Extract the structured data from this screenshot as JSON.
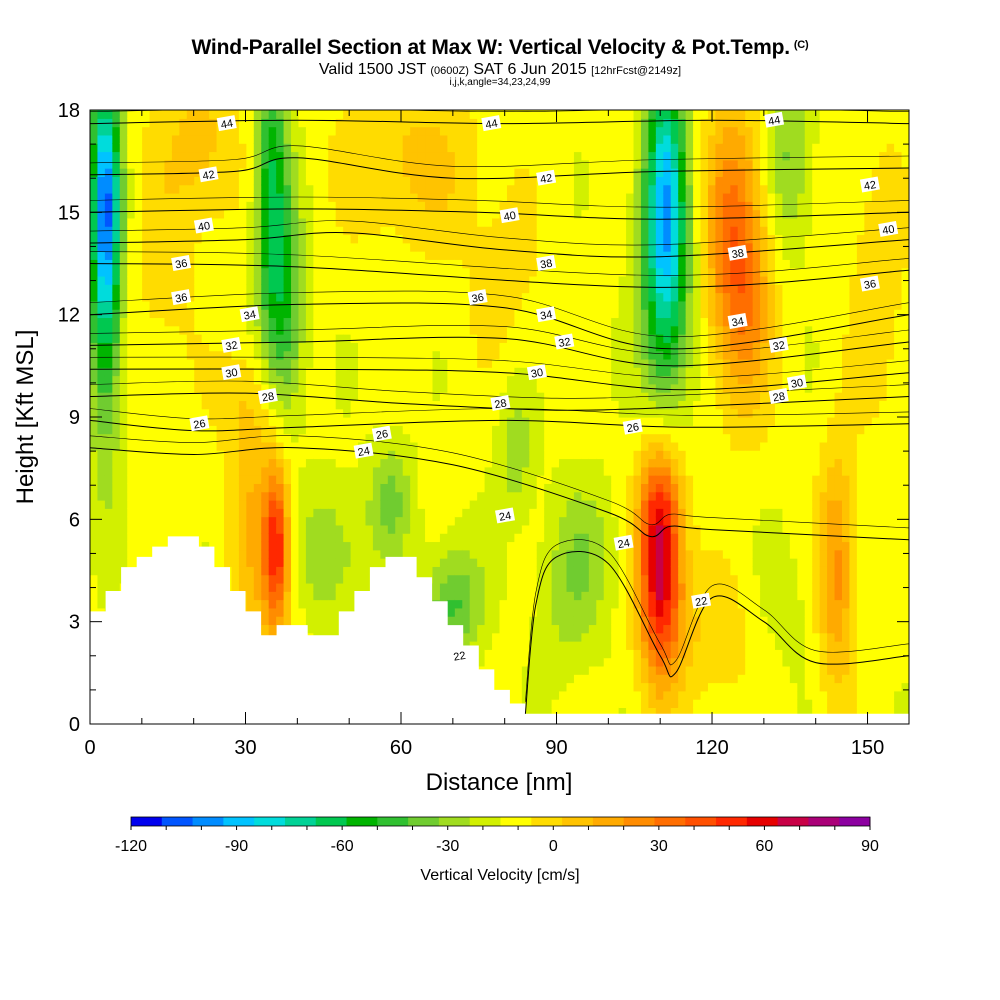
{
  "chart_data": {
    "type": "heatmap",
    "title": "Wind-Parallel Section at Max W: Vertical Velocity & Pot.Temp.",
    "title_mark": "(C)",
    "subtitle_parts": [
      "Valid 1500 JST ",
      "(0600Z)",
      " SAT 6 Jun 2015 ",
      "[12hrFcst@2149z]"
    ],
    "subtitle2": "i,j,k,angle=34,23,24,99",
    "xlabel": "Distance [nm]",
    "ylabel": "Height [Kft MSL]",
    "xlim": [
      0,
      158
    ],
    "ylim": [
      0,
      18
    ],
    "xticks": [
      "0",
      "30",
      "60",
      "90",
      "120",
      "150"
    ],
    "yticks": [
      "0",
      "3",
      "6",
      "9",
      "12",
      "15",
      "18"
    ],
    "colorbar": {
      "title": "Vertical Velocity [cm/s]",
      "ticks": [
        "-120",
        "-90",
        "-60",
        "-30",
        "0",
        "30",
        "60",
        "90"
      ],
      "range": [
        -120,
        90
      ],
      "step": 10,
      "colors": [
        "#0000ee",
        "#0055ff",
        "#008cff",
        "#00c3ff",
        "#00dcdc",
        "#00d296",
        "#00c850",
        "#00b400",
        "#30c030",
        "#70cc30",
        "#a0dc20",
        "#d2f000",
        "#ffff00",
        "#ffdc00",
        "#ffc300",
        "#ffaa00",
        "#ff8c00",
        "#ff6e00",
        "#ff5000",
        "#ff2800",
        "#e60000",
        "#c80046",
        "#aa0078",
        "#8c00a0"
      ]
    },
    "terrain": [
      [
        0,
        3.3
      ],
      [
        3,
        3.3
      ],
      [
        3,
        3.9
      ],
      [
        6,
        3.9
      ],
      [
        6,
        4.6
      ],
      [
        9,
        4.6
      ],
      [
        9,
        4.9
      ],
      [
        12,
        4.9
      ],
      [
        12,
        5.2
      ],
      [
        15,
        5.2
      ],
      [
        15,
        5.5
      ],
      [
        21,
        5.5
      ],
      [
        21,
        5.2
      ],
      [
        24,
        5.2
      ],
      [
        24,
        4.6
      ],
      [
        27,
        4.6
      ],
      [
        27,
        3.9
      ],
      [
        30,
        3.9
      ],
      [
        30,
        3.3
      ],
      [
        33,
        3.3
      ],
      [
        33,
        2.6
      ],
      [
        36,
        2.6
      ],
      [
        36,
        2.9
      ],
      [
        42,
        2.9
      ],
      [
        42,
        2.6
      ],
      [
        48,
        2.6
      ],
      [
        48,
        3.3
      ],
      [
        51,
        3.3
      ],
      [
        51,
        3.9
      ],
      [
        54,
        3.9
      ],
      [
        54,
        4.6
      ],
      [
        57,
        4.6
      ],
      [
        57,
        4.9
      ],
      [
        63,
        4.9
      ],
      [
        63,
        4.3
      ],
      [
        66,
        4.3
      ],
      [
        66,
        3.6
      ],
      [
        69,
        3.6
      ],
      [
        69,
        2.9
      ],
      [
        72,
        2.9
      ],
      [
        72,
        2.3
      ],
      [
        75,
        2.3
      ],
      [
        75,
        1.6
      ],
      [
        78,
        1.6
      ],
      [
        78,
        1.0
      ],
      [
        81,
        1.0
      ],
      [
        81,
        0.6
      ],
      [
        84,
        0.6
      ],
      [
        84,
        0.3
      ],
      [
        158,
        0.3
      ],
      [
        158,
        0
      ],
      [
        0,
        0
      ]
    ],
    "vertical_velocity_features": [
      {
        "x": 3,
        "y": 15.5,
        "sx": 2.0,
        "sy": 2.6,
        "value": -80
      },
      {
        "x": 3,
        "y": 12.0,
        "sx": 2.2,
        "sy": 3.5,
        "value": -40
      },
      {
        "x": 14,
        "y": 13.0,
        "sx": 5,
        "sy": 4,
        "value": 10
      },
      {
        "x": 35,
        "y": 15.5,
        "sx": 2.2,
        "sy": 3.0,
        "value": -55
      },
      {
        "x": 38,
        "y": 12.0,
        "sx": 2.5,
        "sy": 2.5,
        "value": -35
      },
      {
        "x": 36,
        "y": 5.2,
        "sx": 1.6,
        "sy": 1.6,
        "value": 55
      },
      {
        "x": 35,
        "y": 5.0,
        "sx": 3.5,
        "sy": 2.6,
        "value": 25
      },
      {
        "x": 22,
        "y": 17.0,
        "sx": 5,
        "sy": 1.8,
        "value": 20
      },
      {
        "x": 30,
        "y": 6.0,
        "sx": 3,
        "sy": 2.0,
        "value": 15
      },
      {
        "x": 46,
        "y": 5.0,
        "sx": 5,
        "sy": 1.4,
        "value": -22
      },
      {
        "x": 58,
        "y": 6.6,
        "sx": 3,
        "sy": 1.2,
        "value": -25
      },
      {
        "x": 70,
        "y": 3.5,
        "sx": 4,
        "sy": 1.2,
        "value": -35
      },
      {
        "x": 62,
        "y": 16.5,
        "sx": 10,
        "sy": 1.8,
        "value": 20
      },
      {
        "x": 82,
        "y": 8.0,
        "sx": 2.5,
        "sy": 1.4,
        "value": -20
      },
      {
        "x": 95,
        "y": 5.0,
        "sx": 5,
        "sy": 1.5,
        "value": -20
      },
      {
        "x": 92,
        "y": 2.8,
        "sx": 4,
        "sy": 1.3,
        "value": -10
      },
      {
        "x": 110,
        "y": 4.5,
        "sx": 3.0,
        "sy": 2.2,
        "value": 90
      },
      {
        "x": 110,
        "y": 6.5,
        "sx": 3.0,
        "sy": 1.2,
        "value": 20
      },
      {
        "x": 111,
        "y": 16.0,
        "sx": 2.8,
        "sy": 2.8,
        "value": -70
      },
      {
        "x": 111,
        "y": 12.5,
        "sx": 3.5,
        "sy": 2.6,
        "value": -45
      },
      {
        "x": 124,
        "y": 15.0,
        "sx": 4,
        "sy": 2.5,
        "value": 40
      },
      {
        "x": 126,
        "y": 12.0,
        "sx": 4,
        "sy": 2.2,
        "value": 35
      },
      {
        "x": 135,
        "y": 16.5,
        "sx": 3,
        "sy": 1.8,
        "value": -25
      },
      {
        "x": 144,
        "y": 4.5,
        "sx": 2.5,
        "sy": 2.5,
        "value": 40
      },
      {
        "x": 152,
        "y": 13.0,
        "sx": 4,
        "sy": 3.0,
        "value": 15
      },
      {
        "x": 80,
        "y": 13.0,
        "sx": 6,
        "sy": 2.0,
        "value": 10
      },
      {
        "x": 134,
        "y": 3.5,
        "sx": 4,
        "sy": 1.5,
        "value": -8
      },
      {
        "x": 120,
        "y": 2.5,
        "sx": 6,
        "sy": 1.5,
        "value": 15
      },
      {
        "x": 30,
        "y": 9.5,
        "sx": 4,
        "sy": 1.2,
        "value": 15
      }
    ],
    "potential_temperature_contours": [
      {
        "label": "44",
        "points": [
          [
            0,
            17.6
          ],
          [
            40,
            17.7
          ],
          [
            80,
            17.6
          ],
          [
            120,
            17.7
          ],
          [
            158,
            17.6
          ]
        ],
        "labels_at": [
          [
            30,
            17.6
          ],
          [
            88,
            17.6
          ],
          [
            150,
            17.7
          ]
        ]
      },
      {
        "label": "42",
        "points": [
          [
            0,
            16.1
          ],
          [
            28,
            16.2
          ],
          [
            40,
            16.6
          ],
          [
            70,
            16.0
          ],
          [
            110,
            16.2
          ],
          [
            158,
            16.3
          ]
        ],
        "labels_at": [
          [
            26,
            16.1
          ],
          [
            100,
            16.0
          ],
          [
            171,
            15.8
          ]
        ]
      },
      {
        "label": "40",
        "points": [
          [
            0,
            15.0
          ],
          [
            40,
            15.1
          ],
          [
            75,
            15.0
          ],
          [
            110,
            14.8
          ],
          [
            158,
            15.0
          ]
        ],
        "labels_at": [
          [
            25,
            14.6
          ],
          [
            92,
            14.9
          ],
          [
            175,
            14.5
          ]
        ]
      },
      {
        "label": "38",
        "points": [
          [
            0,
            14.1
          ],
          [
            30,
            14.2
          ],
          [
            50,
            14.4
          ],
          [
            80,
            13.9
          ],
          [
            110,
            13.7
          ],
          [
            158,
            14.2
          ]
        ],
        "labels_at": [
          [
            100,
            13.5
          ],
          [
            142,
            13.8
          ]
        ]
      },
      {
        "label": "36",
        "points": [
          [
            0,
            13.5
          ],
          [
            40,
            13.4
          ],
          [
            110,
            12.8
          ],
          [
            158,
            13.3
          ]
        ],
        "labels_at": [
          [
            20,
            13.5
          ],
          [
            20,
            12.5
          ],
          [
            85,
            12.5
          ],
          [
            171,
            12.9
          ]
        ]
      },
      {
        "label": "34",
        "points": [
          [
            0,
            12.0
          ],
          [
            40,
            12.3
          ],
          [
            80,
            12.2
          ],
          [
            112,
            11.0
          ],
          [
            158,
            12.0
          ]
        ],
        "labels_at": [
          [
            35,
            12.0
          ],
          [
            100,
            12.0
          ],
          [
            142,
            11.8
          ]
        ]
      },
      {
        "label": "32",
        "points": [
          [
            0,
            11.1
          ],
          [
            40,
            11.2
          ],
          [
            80,
            11.3
          ],
          [
            112,
            10.5
          ],
          [
            158,
            11.2
          ]
        ],
        "labels_at": [
          [
            31,
            11.1
          ],
          [
            104,
            11.2
          ],
          [
            151,
            11.1
          ]
        ]
      },
      {
        "label": "30",
        "points": [
          [
            0,
            10.4
          ],
          [
            40,
            10.4
          ],
          [
            80,
            10.3
          ],
          [
            115,
            9.8
          ],
          [
            158,
            10.3
          ]
        ],
        "labels_at": [
          [
            31,
            10.3
          ],
          [
            98,
            10.3
          ],
          [
            155,
            10.0
          ]
        ]
      },
      {
        "label": "28",
        "points": [
          [
            0,
            9.6
          ],
          [
            30,
            9.7
          ],
          [
            60,
            9.4
          ],
          [
            90,
            9.2
          ],
          [
            115,
            9.3
          ],
          [
            158,
            9.6
          ]
        ],
        "labels_at": [
          [
            39,
            9.6
          ],
          [
            90,
            9.4
          ],
          [
            151,
            9.6
          ]
        ]
      },
      {
        "label": "26",
        "points": [
          [
            0,
            8.9
          ],
          [
            20,
            8.6
          ],
          [
            40,
            8.7
          ],
          [
            80,
            8.9
          ],
          [
            115,
            8.7
          ],
          [
            158,
            8.8
          ]
        ],
        "labels_at": [
          [
            24,
            8.8
          ],
          [
            64,
            8.5
          ],
          [
            119,
            8.7
          ]
        ]
      },
      {
        "label": "24",
        "points": [
          [
            0,
            8.1
          ],
          [
            20,
            7.9
          ],
          [
            40,
            8.1
          ],
          [
            70,
            7.6
          ],
          [
            100,
            6.2
          ],
          [
            108,
            5.5
          ],
          [
            112,
            5.8
          ],
          [
            120,
            5.7
          ],
          [
            158,
            5.4
          ]
        ],
        "labels_at": [
          [
            60,
            8.0
          ],
          [
            91,
            6.1
          ],
          [
            117,
            5.3
          ]
        ]
      },
      {
        "label": "22",
        "points": [
          [
            84,
            0.3
          ],
          [
            86,
            3.5
          ],
          [
            90,
            4.9
          ],
          [
            100,
            4.7
          ],
          [
            110,
            2.0
          ],
          [
            113,
            1.5
          ],
          [
            120,
            3.7
          ],
          [
            130,
            3.0
          ],
          [
            140,
            1.8
          ],
          [
            158,
            2.0
          ]
        ],
        "labels_at": [
          [
            81,
            2.0
          ],
          [
            134,
            3.6
          ]
        ]
      }
    ]
  }
}
